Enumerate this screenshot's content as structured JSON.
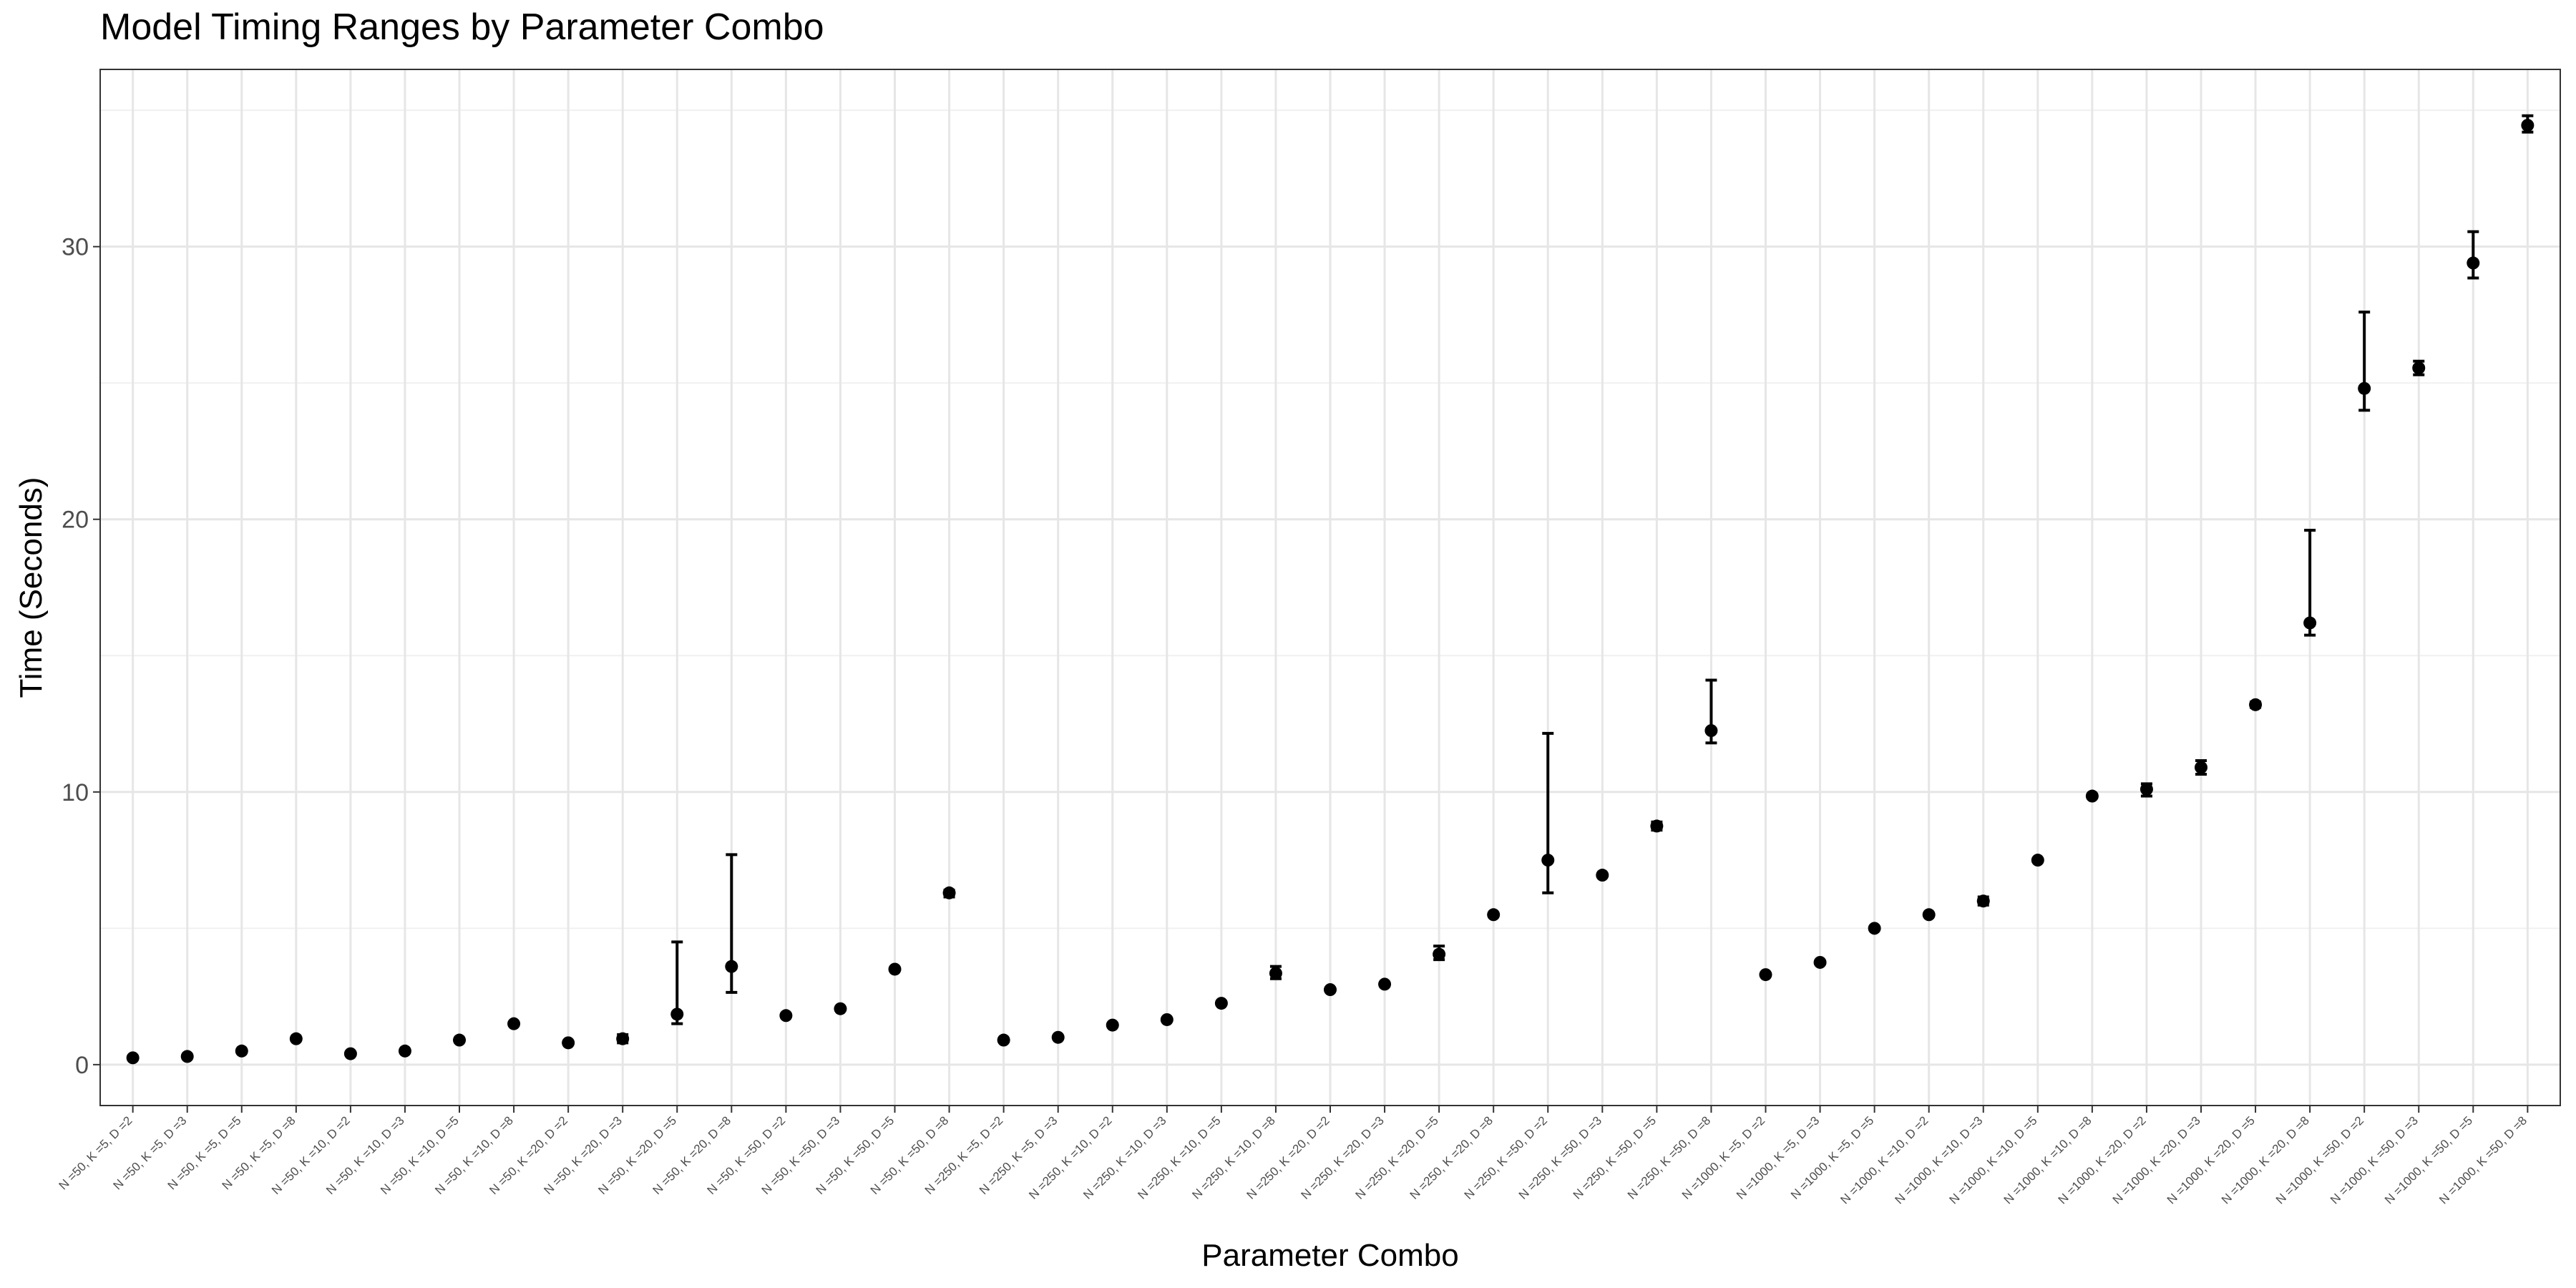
{
  "chart_data": {
    "type": "scatter",
    "title": "Model Timing Ranges by Parameter Combo",
    "xlabel": "Parameter Combo",
    "ylabel": "Time (Seconds)",
    "ylim": [
      -1.5,
      36.5
    ],
    "yticks": [
      0,
      10,
      20,
      30
    ],
    "grid": true,
    "error_bars": true,
    "categories": [
      "N =50, K =5, D =2",
      "N =50, K =5, D =3",
      "N =50, K =5, D =5",
      "N =50, K =5, D =8",
      "N =50, K =10, D =2",
      "N =50, K =10, D =3",
      "N =50, K =10, D =5",
      "N =50, K =10, D =8",
      "N =50, K =20, D =2",
      "N =50, K =20, D =3",
      "N =50, K =20, D =5",
      "N =50, K =20, D =8",
      "N =50, K =50, D =2",
      "N =50, K =50, D =3",
      "N =50, K =50, D =5",
      "N =50, K =50, D =8",
      "N =250, K =5, D =2",
      "N =250, K =5, D =3",
      "N =250, K =10, D =2",
      "N =250, K =10, D =3",
      "N =250, K =10, D =5",
      "N =250, K =10, D =8",
      "N =250, K =20, D =2",
      "N =250, K =20, D =3",
      "N =250, K =20, D =5",
      "N =250, K =20, D =8",
      "N =250, K =50, D =2",
      "N =250, K =50, D =3",
      "N =250, K =50, D =5",
      "N =250, K =50, D =8",
      "N =1000, K =5, D =2",
      "N =1000, K =5, D =3",
      "N =1000, K =5, D =5",
      "N =1000, K =10, D =2",
      "N =1000, K =10, D =3",
      "N =1000, K =10, D =5",
      "N =1000, K =10, D =8",
      "N =1000, K =20, D =2",
      "N =1000, K =20, D =3",
      "N =1000, K =20, D =5",
      "N =1000, K =20, D =8",
      "N =1000, K =50, D =2",
      "N =1000, K =50, D =3",
      "N =1000, K =50, D =5",
      "N =1000, K =50, D =8"
    ],
    "values": [
      0.25,
      0.3,
      0.5,
      0.95,
      0.4,
      0.5,
      0.9,
      1.5,
      0.8,
      0.95,
      1.85,
      3.6,
      1.8,
      2.05,
      3.5,
      6.3,
      0.9,
      1.0,
      1.45,
      1.65,
      2.25,
      3.35,
      2.75,
      2.95,
      4.05,
      5.5,
      7.5,
      6.95,
      8.75,
      12.25,
      3.3,
      3.75,
      5.0,
      5.5,
      6.0,
      7.5,
      9.85,
      10.1,
      10.9,
      13.2,
      16.2,
      24.8,
      25.55,
      29.4,
      34.45
    ],
    "lower": [
      0.2,
      0.25,
      0.45,
      0.9,
      0.35,
      0.45,
      0.85,
      1.45,
      0.75,
      0.8,
      1.5,
      2.65,
      1.75,
      2.0,
      3.45,
      6.15,
      0.85,
      0.95,
      1.4,
      1.6,
      2.2,
      3.15,
      2.7,
      2.9,
      3.85,
      5.45,
      6.3,
      6.9,
      8.6,
      11.8,
      3.25,
      3.7,
      4.95,
      5.45,
      5.85,
      7.45,
      9.8,
      9.85,
      10.65,
      13.1,
      15.75,
      24.0,
      25.3,
      28.85,
      34.2
    ],
    "upper": [
      0.3,
      0.35,
      0.55,
      1.0,
      0.45,
      0.55,
      0.95,
      1.55,
      0.85,
      1.1,
      4.5,
      7.7,
      1.85,
      2.1,
      3.55,
      6.4,
      0.95,
      1.05,
      1.5,
      1.7,
      2.3,
      3.6,
      2.8,
      3.0,
      4.35,
      5.55,
      12.15,
      7.0,
      8.9,
      14.1,
      3.35,
      3.8,
      5.05,
      5.55,
      6.15,
      7.55,
      9.9,
      10.3,
      11.15,
      13.3,
      19.6,
      27.6,
      25.8,
      30.55,
      34.8
    ]
  }
}
